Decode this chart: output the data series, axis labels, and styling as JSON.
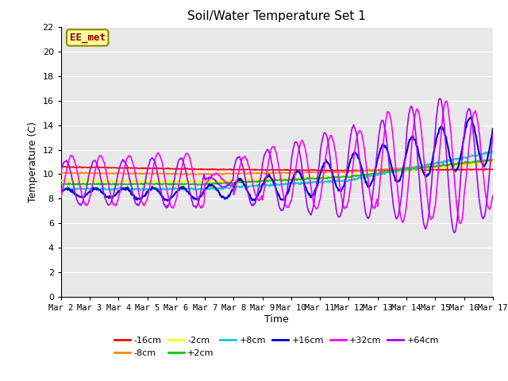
{
  "title": "Soil/Water Temperature Set 1",
  "xlabel": "Time",
  "ylabel": "Temperature (C)",
  "ylim": [
    0,
    22
  ],
  "xlim": [
    0,
    15
  ],
  "xtick_labels": [
    "Mar 2",
    "Mar 3",
    "Mar 4",
    "Mar 5",
    "Mar 6",
    "Mar 7",
    "Mar 8",
    "Mar 9",
    "Mar 10",
    "Mar 11",
    "Mar 12",
    "Mar 13",
    "Mar 14",
    "Mar 15",
    "Mar 16",
    "Mar 17"
  ],
  "xtick_positions": [
    0,
    1,
    2,
    3,
    4,
    5,
    6,
    7,
    8,
    9,
    10,
    11,
    12,
    13,
    14,
    15
  ],
  "annotation_text": "EE_met",
  "annotation_box_color": "#FFFF99",
  "annotation_border_color": "#8B8B00",
  "bg_color": "#E8E8E8",
  "series": [
    {
      "label": "-16cm",
      "color": "#FF0000",
      "linewidth": 1.2
    },
    {
      "label": "-8cm",
      "color": "#FF8800",
      "linewidth": 1.2
    },
    {
      "label": "-2cm",
      "color": "#FFFF00",
      "linewidth": 1.2
    },
    {
      "label": "+2cm",
      "color": "#00CC00",
      "linewidth": 1.2
    },
    {
      "label": "+8cm",
      "color": "#00CCCC",
      "linewidth": 1.2
    },
    {
      "label": "+16cm",
      "color": "#0000CC",
      "linewidth": 1.5
    },
    {
      "label": "+32cm",
      "color": "#FF00FF",
      "linewidth": 1.2
    },
    {
      "label": "+64cm",
      "color": "#AA00FF",
      "linewidth": 1.2
    }
  ],
  "grid_color": "#FFFFFF",
  "legend_ncol": 6
}
